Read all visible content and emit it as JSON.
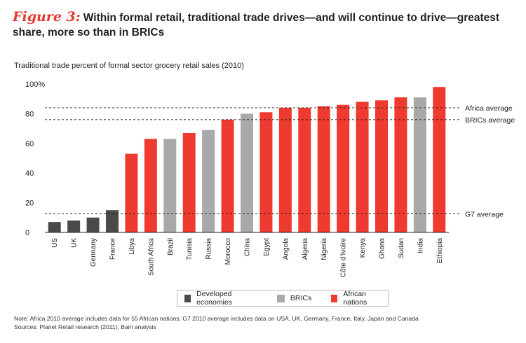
{
  "figure": {
    "label": "Figure 3:",
    "title": "Within formal retail, traditional trade drives—and will continue to drive—greatest share, more so than in BRICs"
  },
  "colors": {
    "developed": "#4a4a4a",
    "brics": "#a9a9ab",
    "african": "#ee3a2f"
  },
  "chart_data": {
    "type": "bar",
    "title": "Traditional trade percent of formal sector grocery retail sales (2010)",
    "xlabel": "",
    "ylabel": "",
    "ylim": [
      0,
      100
    ],
    "y_ticks": [
      0,
      20,
      40,
      60,
      80,
      100
    ],
    "y_tick_labels": [
      "0",
      "20",
      "40",
      "60",
      "80",
      "100%"
    ],
    "categories": [
      "US",
      "UK",
      "Germany",
      "France",
      "Libya",
      "South Africa",
      "Brazil",
      "Tunisia",
      "Russia",
      "Morocco",
      "China",
      "Egypt",
      "Angola",
      "Algeria",
      "Nigeria",
      "Côte d’Ivoire",
      "Kenya",
      "Ghana",
      "Sudan",
      "India",
      "Ethiopia"
    ],
    "values": [
      7,
      8,
      10,
      15,
      53,
      63,
      63,
      67,
      69,
      76,
      80,
      81,
      84,
      84,
      85,
      86,
      88,
      89,
      91,
      91,
      98
    ],
    "groups": [
      "developed",
      "developed",
      "developed",
      "developed",
      "african",
      "african",
      "brics",
      "african",
      "brics",
      "african",
      "brics",
      "african",
      "african",
      "african",
      "african",
      "african",
      "african",
      "african",
      "african",
      "brics",
      "african"
    ],
    "reference_lines": [
      {
        "label": "Africa average",
        "value": 84
      },
      {
        "label": "BRICs average",
        "value": 76
      },
      {
        "label": "G7 average",
        "value": 12.5
      }
    ],
    "legend": [
      {
        "key": "developed",
        "label": "Developed economies"
      },
      {
        "key": "brics",
        "label": "BRICs"
      },
      {
        "key": "african",
        "label": "African nations"
      }
    ],
    "legend_position": "bottom-center"
  },
  "notes": {
    "line1": "Note: Africa 2010 average includes data for 55 African nations; G7 2010 average includes data on USA, UK, Germany, France, Italy, Japan and Canada",
    "line2": "Sources: Planet Retail research (2011); Bain analysis"
  }
}
